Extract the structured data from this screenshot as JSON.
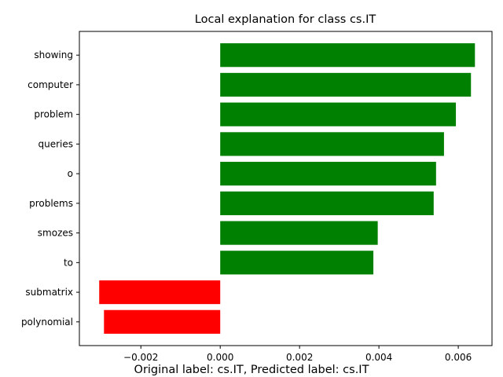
{
  "chart_data": {
    "type": "bar",
    "orientation": "horizontal",
    "title": "Local explanation for class cs.IT",
    "xlabel": "",
    "ylabel": "",
    "xlim": [
      -0.00355,
      0.00685
    ],
    "xticks": [
      -0.002,
      0.0,
      0.002,
      0.004,
      0.006
    ],
    "xtick_labels": [
      "−0.002",
      "0.000",
      "0.002",
      "0.004",
      "0.006"
    ],
    "categories": [
      "showing",
      "computer",
      "problem",
      "queries",
      "o",
      "problems",
      "smozes",
      "to",
      "submatrix",
      "polynomial"
    ],
    "values": [
      0.00642,
      0.00632,
      0.00594,
      0.00564,
      0.00544,
      0.00538,
      0.00397,
      0.00386,
      -0.00305,
      -0.00293
    ],
    "positive_color": "#008000",
    "negative_color": "#ff0000",
    "grid": false,
    "legend": "none"
  },
  "footer_text": "Original label: cs.IT, Predicted label: cs.IT"
}
